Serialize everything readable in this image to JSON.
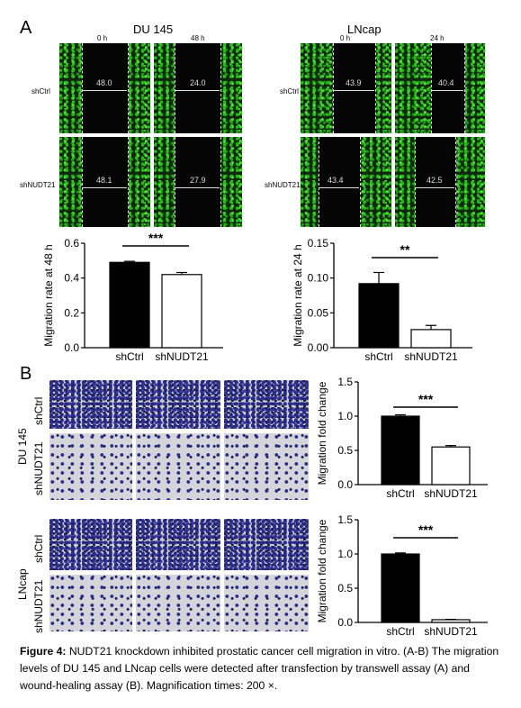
{
  "panelA": {
    "letter": "A",
    "left": {
      "title": "DU 145",
      "times": [
        "0 h",
        "48 h"
      ],
      "rows": [
        {
          "label": "shCtrl",
          "widths": [
            "48.0",
            "24.0"
          ]
        },
        {
          "label": "shNUDT21",
          "widths": [
            "48.1",
            "27.9"
          ]
        }
      ]
    },
    "right": {
      "title": "LNcap",
      "times": [
        "0 h",
        "24 h"
      ],
      "rows": [
        {
          "label": "shCtrl",
          "widths": [
            "43.9",
            "40.4"
          ]
        },
        {
          "label": "shNUDT21",
          "widths": [
            "43.4",
            "42.5"
          ]
        }
      ]
    }
  },
  "panelB": {
    "letter": "B",
    "groups": [
      {
        "cell": "DU 145",
        "rows": [
          "shCtrl",
          "shNUDT21"
        ]
      },
      {
        "cell": "LNcap",
        "rows": [
          "shCtrl",
          "shNUDT21"
        ]
      }
    ]
  },
  "chart_data": [
    {
      "type": "bar",
      "ylabel": "Migration rate at 48 h",
      "categories": [
        "shCtrl",
        "shNUDT21"
      ],
      "values": [
        0.49,
        0.42
      ],
      "errors": [
        0.006,
        0.012
      ],
      "ylim": [
        0.0,
        0.6
      ],
      "yticks": [
        "0.0",
        "0.2",
        "0.4",
        "0.6"
      ],
      "yticks_val": [
        0.0,
        0.2,
        0.4,
        0.6
      ],
      "significance": "***",
      "fills": [
        "#000000",
        "#ffffff"
      ]
    },
    {
      "type": "bar",
      "ylabel": "Migration rate at 24 h",
      "categories": [
        "shCtrl",
        "shNUDT21"
      ],
      "values": [
        0.092,
        0.026
      ],
      "errors": [
        0.016,
        0.006
      ],
      "ylim": [
        0.0,
        0.15
      ],
      "yticks": [
        "0.00",
        "0.05",
        "0.10",
        "0.15"
      ],
      "yticks_val": [
        0.0,
        0.05,
        0.1,
        0.15
      ],
      "significance": "**",
      "fills": [
        "#000000",
        "#ffffff"
      ]
    },
    {
      "type": "bar",
      "ylabel": "Migration fold change",
      "categories": [
        "shCtrl",
        "shNUDT21"
      ],
      "values": [
        1.0,
        0.55
      ],
      "errors": [
        0.02,
        0.02
      ],
      "ylim": [
        0.0,
        1.5
      ],
      "yticks": [
        "0.0",
        "0.5",
        "1.0",
        "1.5"
      ],
      "yticks_val": [
        0.0,
        0.5,
        1.0,
        1.5
      ],
      "significance": "***",
      "fills": [
        "#000000",
        "#ffffff"
      ]
    },
    {
      "type": "bar",
      "ylabel": "Migration fold change",
      "categories": [
        "shCtrl",
        "shNUDT21"
      ],
      "values": [
        1.0,
        0.04
      ],
      "errors": [
        0.015,
        0.005
      ],
      "ylim": [
        0.0,
        1.5
      ],
      "yticks": [
        "0.0",
        "0.5",
        "1.0",
        "1.5"
      ],
      "yticks_val": [
        0.0,
        0.5,
        1.0,
        1.5
      ],
      "significance": "***",
      "fills": [
        "#000000",
        "#ffffff"
      ]
    }
  ],
  "caption": {
    "label": "Figure 4:",
    "text": " NUDT21 knockdown inhibited prostatic cancer cell migration in vitro. (A-B) The migration levels of DU 145 and LNcap cells were detected after transfection by transwell assay (A) and wound-healing assay (B). Magnification times: 200 ×."
  }
}
